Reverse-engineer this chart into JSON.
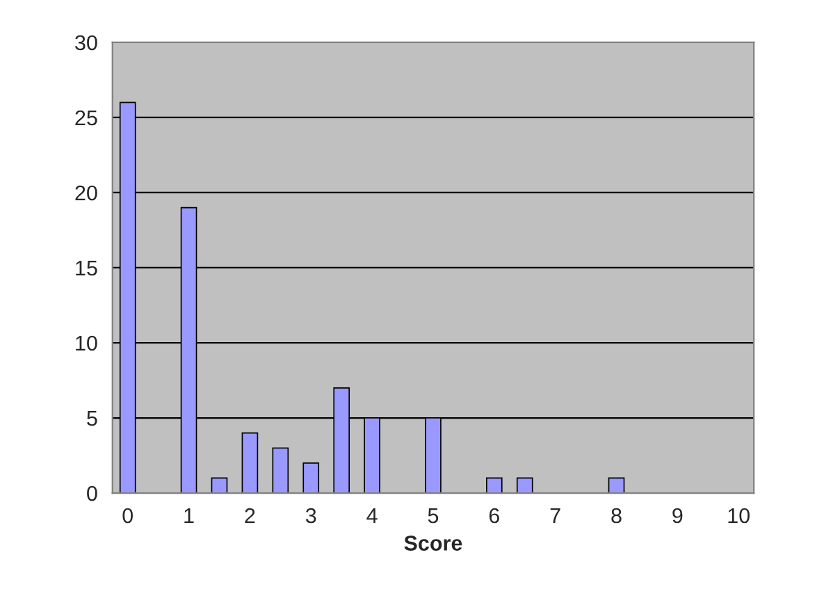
{
  "chart_data": {
    "type": "bar",
    "xlabel": "Score",
    "categories": [
      "0",
      null,
      "1",
      null,
      "2",
      null,
      "3",
      null,
      "4",
      null,
      "5",
      null,
      "6",
      null,
      "7",
      null,
      "8",
      null,
      "9",
      null,
      "10"
    ],
    "values": [
      26,
      0,
      19,
      1,
      4,
      3,
      2,
      7,
      5,
      0,
      5,
      0,
      1,
      1,
      0,
      0,
      1,
      0,
      0,
      0,
      0
    ],
    "color": "#9999ff",
    "ylim": [
      0,
      30
    ],
    "yticks": [
      0,
      5,
      10,
      15,
      20,
      25,
      30
    ],
    "grid": "y",
    "legend": false
  }
}
